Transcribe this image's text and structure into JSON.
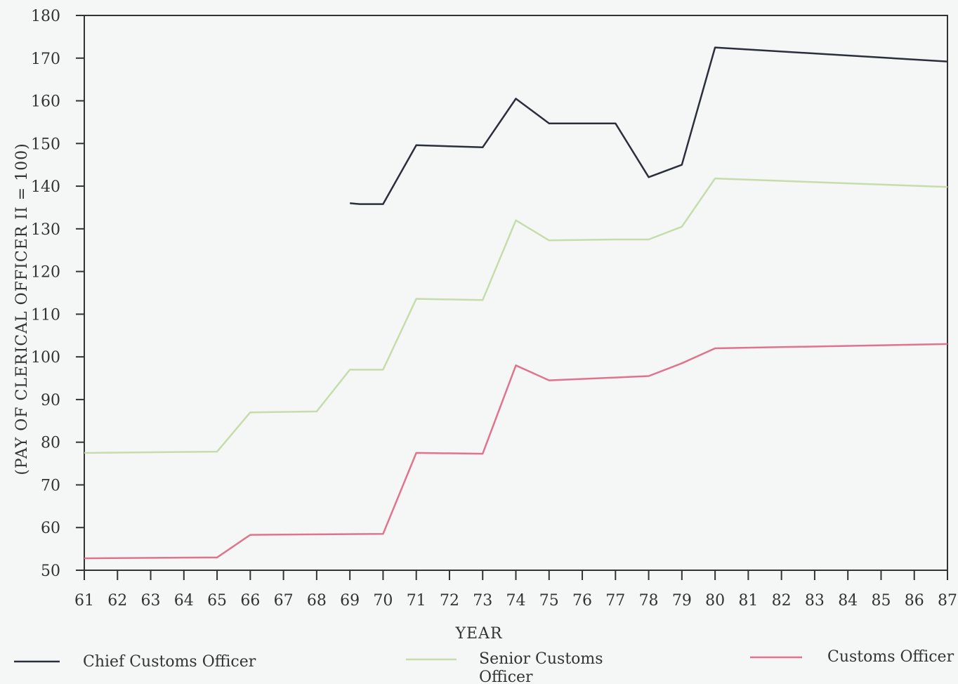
{
  "chart_data": {
    "type": "line",
    "title": "",
    "xlabel": "YEAR",
    "ylabel": "(PAY OF CLERICAL OFFICER II = 100)",
    "xlim": [
      61,
      87
    ],
    "ylim": [
      50,
      180
    ],
    "x_ticks": [
      "61",
      "62",
      "63",
      "64",
      "65",
      "66",
      "67",
      "68",
      "69",
      "70",
      "71",
      "72",
      "73",
      "74",
      "75",
      "76",
      "77",
      "78",
      "79",
      "80",
      "81",
      "82",
      "83",
      "84",
      "85",
      "86",
      "87"
    ],
    "y_ticks": [
      "50",
      "60",
      "70",
      "80",
      "90",
      "100",
      "110",
      "120",
      "130",
      "140",
      "150",
      "160",
      "170",
      "180"
    ],
    "grid": false,
    "legend_position": "bottom",
    "series": [
      {
        "name": "Chief Customs Officer",
        "color": "#2b2f3a",
        "points": [
          [
            69,
            136
          ],
          [
            69.3,
            135.8
          ],
          [
            70,
            135.8
          ],
          [
            71,
            149.6
          ],
          [
            73,
            149.1
          ],
          [
            74,
            160.5
          ],
          [
            75,
            154.7
          ],
          [
            77,
            154.7
          ],
          [
            78,
            142.1
          ],
          [
            79,
            145
          ],
          [
            80,
            172.5
          ],
          [
            87,
            169.2
          ]
        ]
      },
      {
        "name": "Senior Customs Officer",
        "color": "#c7dcaa",
        "points": [
          [
            61,
            77.5
          ],
          [
            65,
            77.8
          ],
          [
            66,
            87
          ],
          [
            68,
            87.2
          ],
          [
            69,
            97
          ],
          [
            70,
            97
          ],
          [
            71,
            113.6
          ],
          [
            73,
            113.3
          ],
          [
            74,
            132
          ],
          [
            75,
            127.3
          ],
          [
            77,
            127.5
          ],
          [
            78,
            127.5
          ],
          [
            79,
            130.5
          ],
          [
            80,
            141.8
          ],
          [
            87,
            139.8
          ]
        ]
      },
      {
        "name": "Customs Officer",
        "color": "#e0738e",
        "points": [
          [
            61,
            52.8
          ],
          [
            65,
            53
          ],
          [
            66,
            58.3
          ],
          [
            70,
            58.5
          ],
          [
            71,
            77.5
          ],
          [
            73,
            77.3
          ],
          [
            74,
            98
          ],
          [
            75,
            94.5
          ],
          [
            78,
            95.5
          ],
          [
            79,
            98.5
          ],
          [
            80,
            102
          ],
          [
            87,
            103
          ]
        ]
      }
    ],
    "legend": {
      "items": [
        {
          "label": "Chief Customs Officer",
          "lines": [
            "Chief Customs Officer"
          ]
        },
        {
          "label": "Senior Customs Officer",
          "lines": [
            "Senior Customs",
            "Officer"
          ]
        },
        {
          "label": "Customs Officer",
          "lines": [
            "Customs Officer"
          ]
        }
      ]
    }
  }
}
